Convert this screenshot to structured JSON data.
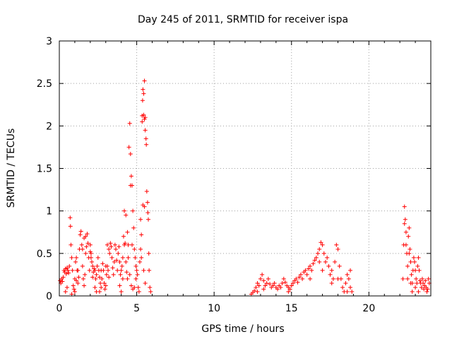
{
  "chart_data": {
    "type": "scatter",
    "title": "Day 245 of 2011, SRMTID for receiver ispa",
    "xlabel": "GPS time / hours",
    "ylabel": "SRMTID / TECUs",
    "xlim": [
      0,
      24
    ],
    "ylim": [
      0,
      3
    ],
    "x_ticks": [
      0,
      5,
      10,
      15,
      20
    ],
    "x_tick_labels": [
      "0",
      "5",
      "10",
      "15",
      "20"
    ],
    "y_ticks": [
      0,
      0.5,
      1,
      1.5,
      2,
      2.5,
      3
    ],
    "y_tick_labels": [
      "0",
      "0.5",
      "1",
      "1.5",
      "2",
      "2.5",
      "3"
    ],
    "grid": true,
    "marker": "+",
    "color": "#ff0000",
    "series": [
      {
        "name": "SRMTID",
        "points": [
          [
            0.05,
            0.18
          ],
          [
            0.1,
            0.15
          ],
          [
            0.15,
            0.2
          ],
          [
            0.2,
            0.17
          ],
          [
            0.25,
            0.22
          ],
          [
            0.3,
            0.3
          ],
          [
            0.35,
            0.28
          ],
          [
            0.4,
            0.32
          ],
          [
            0.45,
            0.26
          ],
          [
            0.5,
            0.33
          ],
          [
            0.55,
            0.3
          ],
          [
            0.6,
            0.27
          ],
          [
            0.65,
            0.35
          ],
          [
            0.7,
            0.92
          ],
          [
            0.72,
            0.82
          ],
          [
            0.75,
            0.6
          ],
          [
            0.8,
            0.45
          ],
          [
            0.85,
            0.3
          ],
          [
            0.9,
            0.12
          ],
          [
            0.95,
            0.08
          ],
          [
            1.0,
            0.2
          ],
          [
            1.05,
            0.4
          ],
          [
            1.1,
            0.45
          ],
          [
            1.15,
            0.3
          ],
          [
            1.2,
            0.15
          ],
          [
            1.25,
            0.22
          ],
          [
            1.3,
            0.55
          ],
          [
            1.35,
            0.72
          ],
          [
            1.4,
            0.76
          ],
          [
            1.45,
            0.6
          ],
          [
            1.5,
            0.35
          ],
          [
            1.55,
            0.2
          ],
          [
            1.6,
            0.12
          ],
          [
            1.65,
            0.25
          ],
          [
            1.7,
            0.5
          ],
          [
            1.75,
            0.58
          ],
          [
            1.8,
            0.73
          ],
          [
            1.85,
            0.62
          ],
          [
            1.9,
            0.45
          ],
          [
            1.95,
            0.3
          ],
          [
            2.0,
            0.52
          ],
          [
            2.05,
            0.5
          ],
          [
            2.1,
            0.4
          ],
          [
            2.15,
            0.35
          ],
          [
            2.2,
            0.28
          ],
          [
            2.25,
            0.32
          ],
          [
            2.3,
            0.3
          ],
          [
            2.35,
            0.2
          ],
          [
            2.4,
            0.25
          ],
          [
            2.45,
            0.35
          ],
          [
            2.5,
            0.45
          ],
          [
            2.55,
            0.3
          ],
          [
            2.6,
            0.22
          ],
          [
            2.65,
            0.15
          ],
          [
            2.7,
            0.1
          ],
          [
            2.75,
            0.2
          ],
          [
            2.8,
            0.38
          ],
          [
            2.85,
            0.3
          ],
          [
            2.9,
            0.15
          ],
          [
            2.95,
            0.08
          ],
          [
            3.0,
            0.12
          ],
          [
            3.05,
            0.25
          ],
          [
            3.1,
            0.35
          ],
          [
            3.15,
            0.3
          ],
          [
            3.2,
            0.22
          ],
          [
            3.25,
            0.5
          ],
          [
            3.3,
            0.62
          ],
          [
            3.35,
            0.58
          ],
          [
            3.4,
            0.45
          ],
          [
            3.45,
            0.33
          ],
          [
            3.5,
            0.25
          ],
          [
            3.55,
            0.4
          ],
          [
            3.6,
            0.6
          ],
          [
            3.65,
            0.55
          ],
          [
            3.7,
            0.42
          ],
          [
            3.75,
            0.3
          ],
          [
            3.8,
            0.5
          ],
          [
            3.85,
            0.58
          ],
          [
            3.9,
            0.4
          ],
          [
            3.95,
            0.25
          ],
          [
            4.0,
            0.3
          ],
          [
            4.05,
            0.35
          ],
          [
            4.1,
            0.45
          ],
          [
            4.15,
            0.7
          ],
          [
            4.2,
            1.0
          ],
          [
            4.25,
            0.62
          ],
          [
            4.3,
            0.4
          ],
          [
            4.35,
            0.28
          ],
          [
            4.4,
            0.2
          ],
          [
            4.45,
            0.45
          ],
          [
            4.5,
            1.75
          ],
          [
            4.55,
            2.03
          ],
          [
            4.6,
            1.67
          ],
          [
            4.65,
            1.41
          ],
          [
            4.7,
            1.3
          ],
          [
            4.75,
            1.0
          ],
          [
            4.8,
            0.8
          ],
          [
            4.85,
            0.55
          ],
          [
            4.9,
            0.45
          ],
          [
            4.95,
            0.35
          ],
          [
            5.0,
            0.3
          ],
          [
            5.05,
            0.25
          ],
          [
            5.1,
            0.1
          ],
          [
            5.15,
            0.05
          ],
          [
            5.2,
            0.4
          ],
          [
            5.25,
            0.55
          ],
          [
            5.3,
            0.72
          ],
          [
            5.35,
            2.05
          ],
          [
            5.38,
            2.3
          ],
          [
            5.4,
            2.43
          ],
          [
            5.45,
            2.38
          ],
          [
            5.5,
            2.53
          ],
          [
            5.55,
            2.1
          ],
          [
            5.6,
            1.85
          ],
          [
            5.62,
            1.78
          ],
          [
            5.65,
            1.23
          ],
          [
            5.7,
            1.1
          ],
          [
            5.72,
            0.98
          ],
          [
            5.75,
            0.9
          ],
          [
            5.78,
            0.5
          ],
          [
            5.8,
            0.3
          ],
          [
            5.85,
            0.1
          ],
          [
            5.9,
            0.05
          ],
          [
            4.6,
            1.3
          ],
          [
            4.7,
            0.6
          ],
          [
            4.55,
            0.25
          ],
          [
            4.65,
            0.12
          ],
          [
            4.75,
            0.08
          ],
          [
            4.85,
            0.1
          ],
          [
            4.95,
            0.2
          ],
          [
            5.35,
            2.12
          ],
          [
            5.45,
            2.13
          ],
          [
            5.5,
            2.08
          ],
          [
            5.55,
            1.95
          ],
          [
            5.4,
            1.07
          ],
          [
            5.5,
            1.05
          ],
          [
            5.25,
            0.9
          ],
          [
            5.3,
            0.45
          ],
          [
            5.45,
            0.3
          ],
          [
            5.55,
            0.15
          ],
          [
            3.9,
            0.12
          ],
          [
            4.0,
            0.05
          ],
          [
            4.1,
            0.2
          ],
          [
            4.2,
            0.6
          ],
          [
            4.3,
            0.95
          ],
          [
            4.4,
            0.75
          ],
          [
            4.45,
            0.6
          ],
          [
            1.5,
            0.55
          ],
          [
            1.6,
            0.68
          ],
          [
            1.7,
            0.7
          ],
          [
            2.0,
            0.6
          ],
          [
            2.05,
            0.45
          ],
          [
            2.15,
            0.22
          ],
          [
            2.3,
            0.1
          ],
          [
            2.4,
            0.05
          ],
          [
            2.6,
            0.05
          ],
          [
            2.7,
            0.3
          ],
          [
            3.0,
            0.35
          ],
          [
            3.1,
            0.6
          ],
          [
            3.2,
            0.55
          ],
          [
            0.4,
            0.05
          ],
          [
            0.5,
            0.1
          ],
          [
            0.8,
            0.02
          ],
          [
            1.0,
            0.05
          ],
          [
            1.1,
            0.18
          ],
          [
            1.2,
            0.3
          ],
          [
            12.4,
            0.02
          ],
          [
            12.5,
            0.04
          ],
          [
            12.6,
            0.06
          ],
          [
            12.7,
            0.1
          ],
          [
            12.8,
            0.15
          ],
          [
            12.9,
            0.12
          ],
          [
            13.0,
            0.2
          ],
          [
            13.1,
            0.25
          ],
          [
            13.2,
            0.18
          ],
          [
            13.3,
            0.12
          ],
          [
            13.4,
            0.15
          ],
          [
            13.5,
            0.2
          ],
          [
            13.6,
            0.14
          ],
          [
            13.7,
            0.1
          ],
          [
            13.8,
            0.12
          ],
          [
            13.9,
            0.15
          ],
          [
            14.0,
            0.1
          ],
          [
            14.1,
            0.08
          ],
          [
            14.2,
            0.12
          ],
          [
            14.3,
            0.1
          ],
          [
            14.4,
            0.15
          ],
          [
            14.5,
            0.2
          ],
          [
            14.6,
            0.16
          ],
          [
            14.7,
            0.12
          ],
          [
            14.8,
            0.1
          ],
          [
            14.9,
            0.08
          ],
          [
            15.0,
            0.12
          ],
          [
            15.1,
            0.15
          ],
          [
            15.2,
            0.18
          ],
          [
            15.3,
            0.2
          ],
          [
            15.4,
            0.16
          ],
          [
            15.5,
            0.22
          ],
          [
            15.6,
            0.25
          ],
          [
            15.7,
            0.2
          ],
          [
            15.8,
            0.28
          ],
          [
            15.9,
            0.3
          ],
          [
            16.0,
            0.25
          ],
          [
            16.1,
            0.32
          ],
          [
            16.2,
            0.35
          ],
          [
            16.3,
            0.3
          ],
          [
            16.4,
            0.38
          ],
          [
            16.5,
            0.42
          ],
          [
            16.6,
            0.45
          ],
          [
            16.7,
            0.5
          ],
          [
            16.8,
            0.55
          ],
          [
            16.9,
            0.63
          ],
          [
            17.0,
            0.6
          ],
          [
            17.1,
            0.5
          ],
          [
            17.2,
            0.4
          ],
          [
            17.3,
            0.45
          ],
          [
            17.4,
            0.35
          ],
          [
            17.5,
            0.25
          ],
          [
            17.6,
            0.15
          ],
          [
            17.7,
            0.2
          ],
          [
            17.8,
            0.4
          ],
          [
            17.9,
            0.6
          ],
          [
            18.0,
            0.55
          ],
          [
            18.1,
            0.35
          ],
          [
            18.2,
            0.2
          ],
          [
            18.3,
            0.1
          ],
          [
            18.4,
            0.05
          ],
          [
            18.5,
            0.15
          ],
          [
            18.6,
            0.25
          ],
          [
            18.7,
            0.2
          ],
          [
            18.8,
            0.3
          ],
          [
            18.9,
            0.05
          ],
          [
            12.8,
            0.05
          ],
          [
            13.2,
            0.08
          ],
          [
            14.8,
            0.05
          ],
          [
            16.2,
            0.2
          ],
          [
            16.8,
            0.4
          ],
          [
            17.0,
            0.3
          ],
          [
            17.6,
            0.3
          ],
          [
            18.0,
            0.2
          ],
          [
            18.6,
            0.05
          ],
          [
            18.8,
            0.1
          ],
          [
            22.2,
            0.2
          ],
          [
            22.25,
            0.6
          ],
          [
            22.3,
            1.05
          ],
          [
            22.35,
            0.9
          ],
          [
            22.4,
            0.75
          ],
          [
            22.45,
            0.5
          ],
          [
            22.5,
            0.35
          ],
          [
            22.55,
            0.7
          ],
          [
            22.6,
            0.8
          ],
          [
            22.65,
            0.55
          ],
          [
            22.7,
            0.4
          ],
          [
            22.75,
            0.25
          ],
          [
            22.8,
            0.15
          ],
          [
            22.85,
            0.3
          ],
          [
            22.9,
            0.45
          ],
          [
            22.95,
            0.4
          ],
          [
            23.0,
            0.3
          ],
          [
            23.05,
            0.2
          ],
          [
            23.1,
            0.15
          ],
          [
            23.15,
            0.35
          ],
          [
            23.2,
            0.45
          ],
          [
            23.25,
            0.3
          ],
          [
            23.3,
            0.18
          ],
          [
            23.35,
            0.15
          ],
          [
            23.4,
            0.1
          ],
          [
            23.45,
            0.2
          ],
          [
            23.5,
            0.15
          ],
          [
            23.55,
            0.08
          ],
          [
            23.6,
            0.12
          ],
          [
            23.65,
            0.18
          ],
          [
            23.7,
            0.1
          ],
          [
            23.75,
            0.05
          ],
          [
            23.8,
            0.08
          ],
          [
            23.85,
            0.2
          ],
          [
            23.9,
            0.15
          ],
          [
            22.3,
            0.85
          ],
          [
            22.4,
            0.6
          ],
          [
            22.5,
            0.2
          ],
          [
            22.6,
            0.5
          ],
          [
            22.7,
            0.15
          ],
          [
            22.8,
            0.05
          ],
          [
            23.0,
            0.1
          ],
          [
            23.2,
            0.05
          ]
        ]
      }
    ]
  }
}
